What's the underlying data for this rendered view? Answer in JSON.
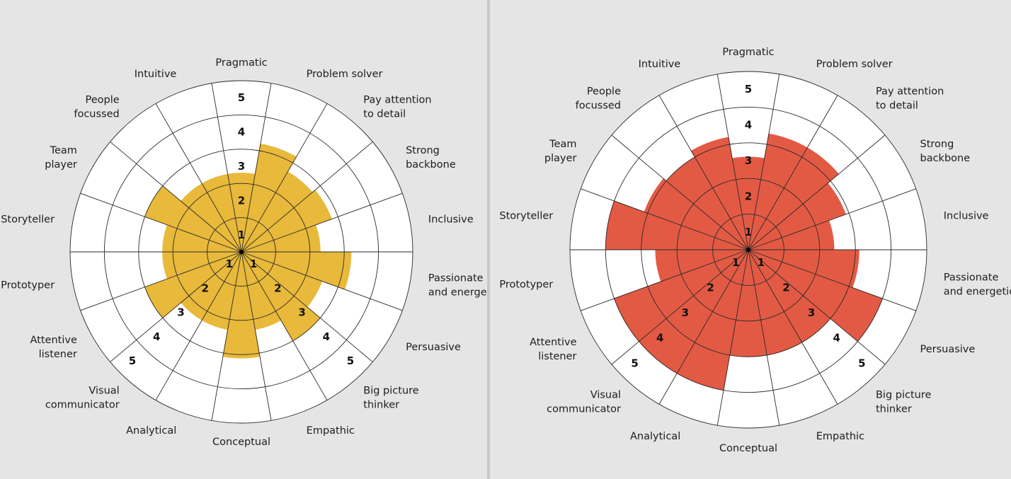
{
  "chart_data": [
    {
      "type": "polar_bar",
      "categories": [
        "Pragmatic",
        "Problem solver",
        "Pay attention to detail",
        "Strong backbone",
        "Inclusive",
        "Passionate and energetic",
        "Persuasive",
        "Big picture thinker",
        "Empathic",
        "Conceptual",
        "Analytical",
        "Visual communicator",
        "Attentive listener",
        "Prototyper",
        "Storyteller",
        "Team player",
        "People focussed",
        "Intuitive"
      ],
      "category_lines": [
        [
          "Pragmatic"
        ],
        [
          "Problem solver"
        ],
        [
          "Pay attention",
          "to detail"
        ],
        [
          "Strong",
          "backbone"
        ],
        [
          "Inclusive"
        ],
        [
          "Passionate",
          "and energetic"
        ],
        [
          "Persuasive"
        ],
        [
          "Big picture",
          "thinker"
        ],
        [
          "Empathic"
        ],
        [
          "Conceptual"
        ],
        [
          "Analytical"
        ],
        [
          "Visual",
          "communicator"
        ],
        [
          "Attentive",
          "listener"
        ],
        [
          "Prototyper"
        ],
        [
          "Storyteller"
        ],
        [
          "Team",
          "player"
        ],
        [
          "People",
          "focussed"
        ],
        [
          "Intuitive"
        ]
      ],
      "values": [
        2.3,
        3.2,
        2.7,
        2.8,
        2.3,
        3.2,
        2.5,
        3.0,
        2.3,
        3.1,
        2.3,
        2.3,
        3.0,
        2.3,
        2.3,
        3.0,
        2.3,
        2.3
      ],
      "rlim": [
        0,
        5
      ],
      "ring_labels": [
        "1",
        "2",
        "3",
        "4",
        "5"
      ],
      "color": "#e8b93a"
    },
    {
      "type": "polar_bar",
      "categories": [
        "Pragmatic",
        "Problem solver",
        "Pay attention to detail",
        "Strong backbone",
        "Inclusive",
        "Passionate and energetic",
        "Persuasive",
        "Big picture thinker",
        "Empathic",
        "Conceptual",
        "Analytical",
        "Visual communicator",
        "Attentive listener",
        "Prototyper",
        "Storyteller",
        "Team player",
        "People focussed",
        "Intuitive"
      ],
      "category_lines": [
        [
          "Pragmatic"
        ],
        [
          "Problem solver"
        ],
        [
          "Pay attention",
          "to detail"
        ],
        [
          "Strong",
          "backbone"
        ],
        [
          "Inclusive"
        ],
        [
          "Passionate",
          "and energetic"
        ],
        [
          "Persuasive"
        ],
        [
          "Big picture",
          "thinker"
        ],
        [
          "Empathic"
        ],
        [
          "Conceptual"
        ],
        [
          "Analytical"
        ],
        [
          "Visual",
          "communicator"
        ],
        [
          "Attentive",
          "listener"
        ],
        [
          "Prototyper"
        ],
        [
          "Storyteller"
        ],
        [
          "Team",
          "player"
        ],
        [
          "People",
          "focussed"
        ],
        [
          "Intuitive"
        ]
      ],
      "values": [
        2.6,
        3.3,
        3.3,
        2.9,
        2.4,
        3.1,
        4.0,
        3.0,
        3.0,
        3.0,
        4.0,
        4.0,
        4.0,
        2.6,
        4.0,
        3.1,
        3.0,
        3.2
      ],
      "rlim": [
        0,
        5
      ],
      "ring_labels": [
        "1",
        "2",
        "3",
        "4",
        "5"
      ],
      "color": "#e35a44"
    }
  ]
}
